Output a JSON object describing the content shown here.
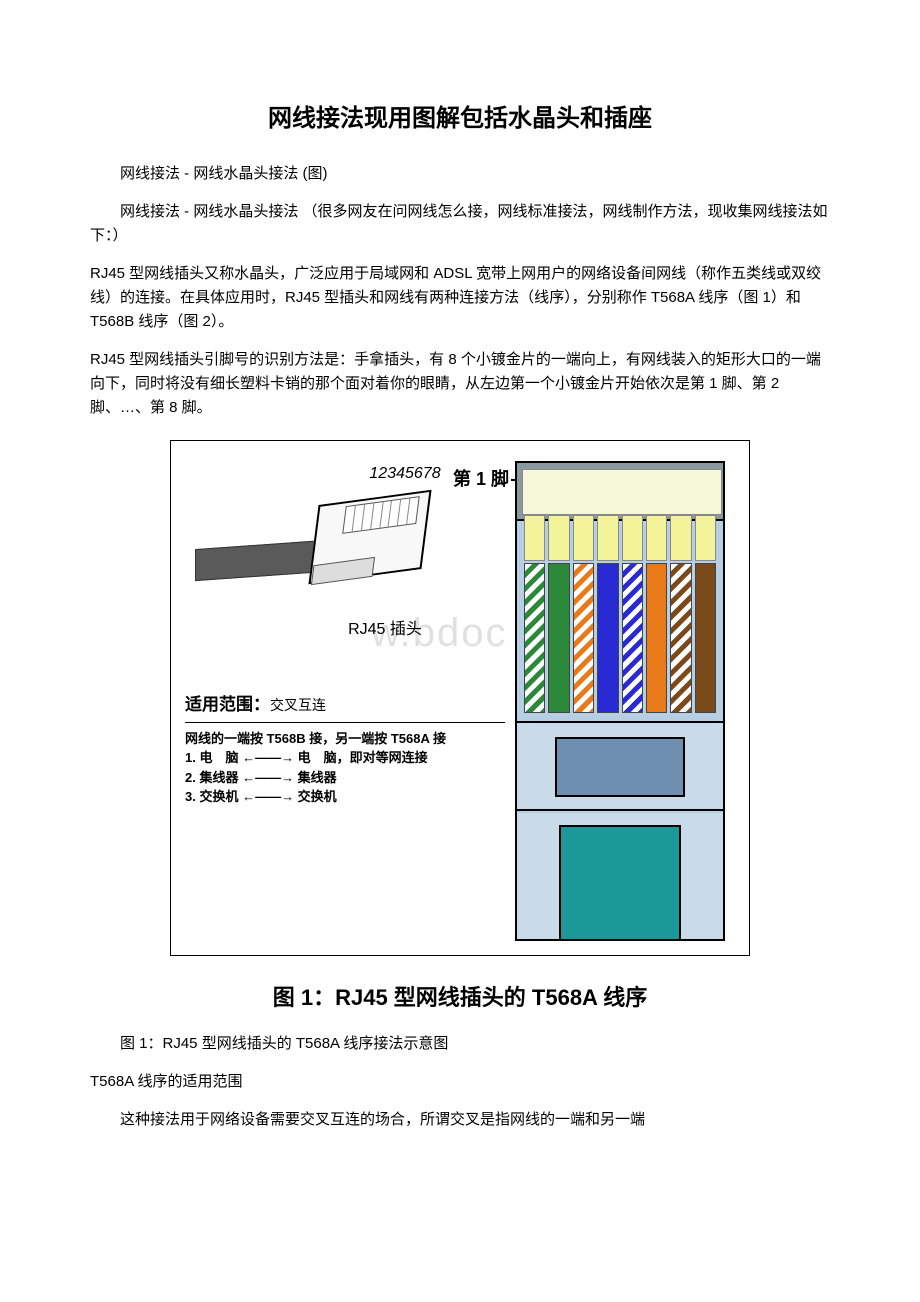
{
  "title": "网线接法现用图解包括水晶头和插座",
  "p1": "网线接法 - 网线水晶头接法 (图)",
  "p2": "网线接法 - 网线水晶头接法 （很多网友在问网线怎么接，网线标准接法，网线制作方法，现收集网线接法如下：）",
  "p3": "RJ45 型网线插头又称水晶头，广泛应用于局域网和 ADSL 宽带上网用户的网络设备间网线（称作五类线或双绞线）的连接。在具体应用时，RJ45 型插头和网线有两种连接方法（线序），分别称作 T568A 线序（图 1）和 T568B 线序（图 2）。",
  "p4": "RJ45 型网线插头引脚号的识别方法是：手拿插头，有 8 个小镀金片的一端向上，有网线装入的矩形大口的一端向下，同时将没有细长塑料卡销的那个面对着你的眼睛，从左边第一个小镀金片开始依次是第 1 脚、第 2 脚、…、第 8 脚。",
  "diagram": {
    "pin_numbers": "12345678",
    "plug_label": "RJ45 插头",
    "first_pin": "第 1 脚",
    "watermark": "w.bdoc",
    "scope_title": "适用范围：",
    "scope_sub": "交叉互连",
    "scope_line": "网线的一端按 T568B 接，另一端按 T568A 接",
    "scope_items": [
      {
        "n": "1.",
        "l": "电　脑",
        "r": "电　脑，即对等网连接"
      },
      {
        "n": "2.",
        "l": "集线器",
        "r": "集线器"
      },
      {
        "n": "3.",
        "l": "交换机",
        "r": "交换机"
      }
    ],
    "arrow_glyph": "←——→",
    "wire_colors": {
      "green": "#2a8a3a",
      "orange": "#e87a1a",
      "blue": "#2a2ad4",
      "brown": "#7a4a1a"
    },
    "wires": [
      {
        "type": "striped",
        "color_key": "green"
      },
      {
        "type": "solid",
        "color_key": "green"
      },
      {
        "type": "striped",
        "color_key": "orange"
      },
      {
        "type": "solid",
        "color_key": "blue"
      },
      {
        "type": "striped",
        "color_key": "blue"
      },
      {
        "type": "solid",
        "color_key": "orange"
      },
      {
        "type": "striped",
        "color_key": "brown"
      },
      {
        "type": "solid",
        "color_key": "brown"
      }
    ]
  },
  "figure_title": "图 1：RJ45 型网线插头的 T568A 线序",
  "caption": "图 1：RJ45 型网线插头的 T568A 线序接法示意图",
  "section2_title": "T568A 线序的适用范围",
  "p5": "这种接法用于网络设备需要交叉互连的场合，所谓交叉是指网线的一端和另一端"
}
